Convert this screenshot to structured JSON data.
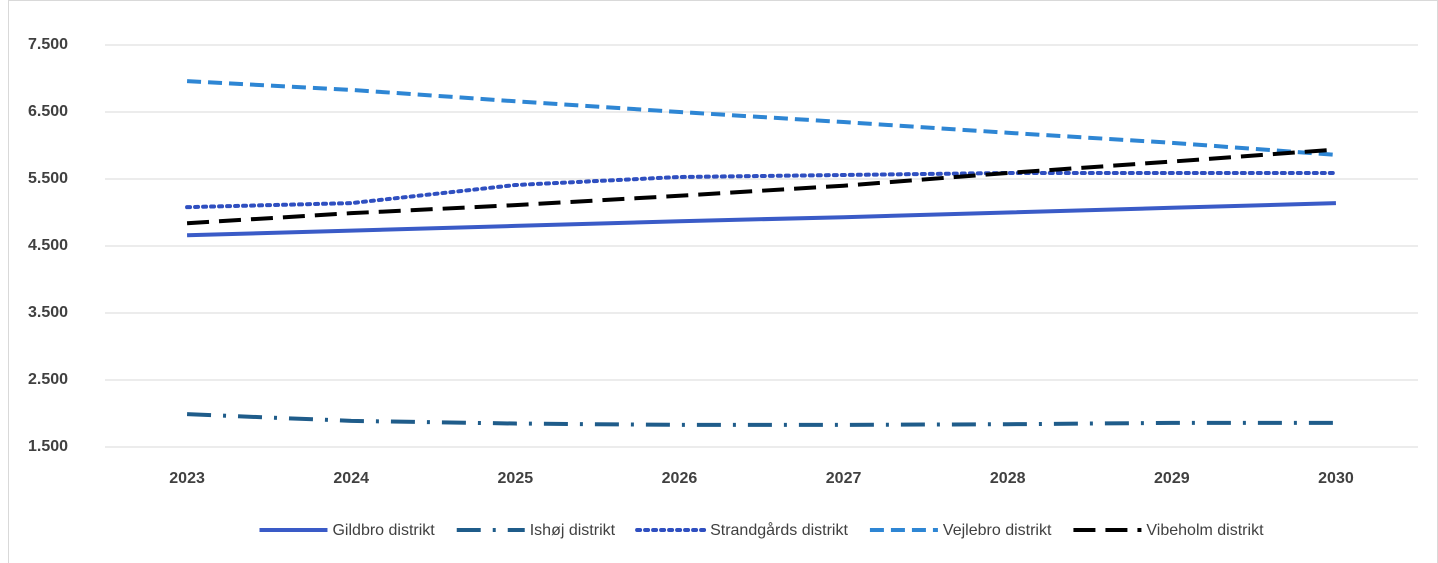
{
  "chart_data": {
    "type": "line",
    "categories": [
      "2023",
      "2024",
      "2025",
      "2026",
      "2027",
      "2028",
      "2029",
      "2030"
    ],
    "ylim": [
      1500,
      7500
    ],
    "yticks": [
      {
        "value": 1500,
        "label": "1.500"
      },
      {
        "value": 2500,
        "label": "2.500"
      },
      {
        "value": 3500,
        "label": "3.500"
      },
      {
        "value": 4500,
        "label": "4.500"
      },
      {
        "value": 5500,
        "label": "5.500"
      },
      {
        "value": 6500,
        "label": "6.500"
      },
      {
        "value": 7500,
        "label": "7.500"
      }
    ],
    "grid": true,
    "legend": "bottom",
    "series": [
      {
        "name": "Gildbro distrikt",
        "color": "#3a5bc7",
        "dash": "solid",
        "values": [
          4660,
          4730,
          4800,
          4870,
          4930,
          5000,
          5070,
          5140
        ]
      },
      {
        "name": "Ishøj distrikt",
        "color": "#1f5c8a",
        "dash": "longdashdot",
        "values": [
          1990,
          1890,
          1850,
          1830,
          1830,
          1840,
          1860,
          1860
        ]
      },
      {
        "name": "Strandgårds distrikt",
        "color": "#2f4fc0",
        "dash": "dot",
        "values": [
          5080,
          5140,
          5410,
          5530,
          5560,
          5590,
          5590,
          5590
        ]
      },
      {
        "name": "Vejlebro distrikt",
        "color": "#2e86d4",
        "dash": "dash",
        "values": [
          6960,
          6830,
          6660,
          6500,
          6350,
          6190,
          6040,
          5860
        ]
      },
      {
        "name": "Vibeholm distrikt",
        "color": "#000000",
        "dash": "longdash",
        "values": [
          4840,
          4990,
          5110,
          5250,
          5400,
          5590,
          5760,
          5940
        ]
      }
    ]
  }
}
